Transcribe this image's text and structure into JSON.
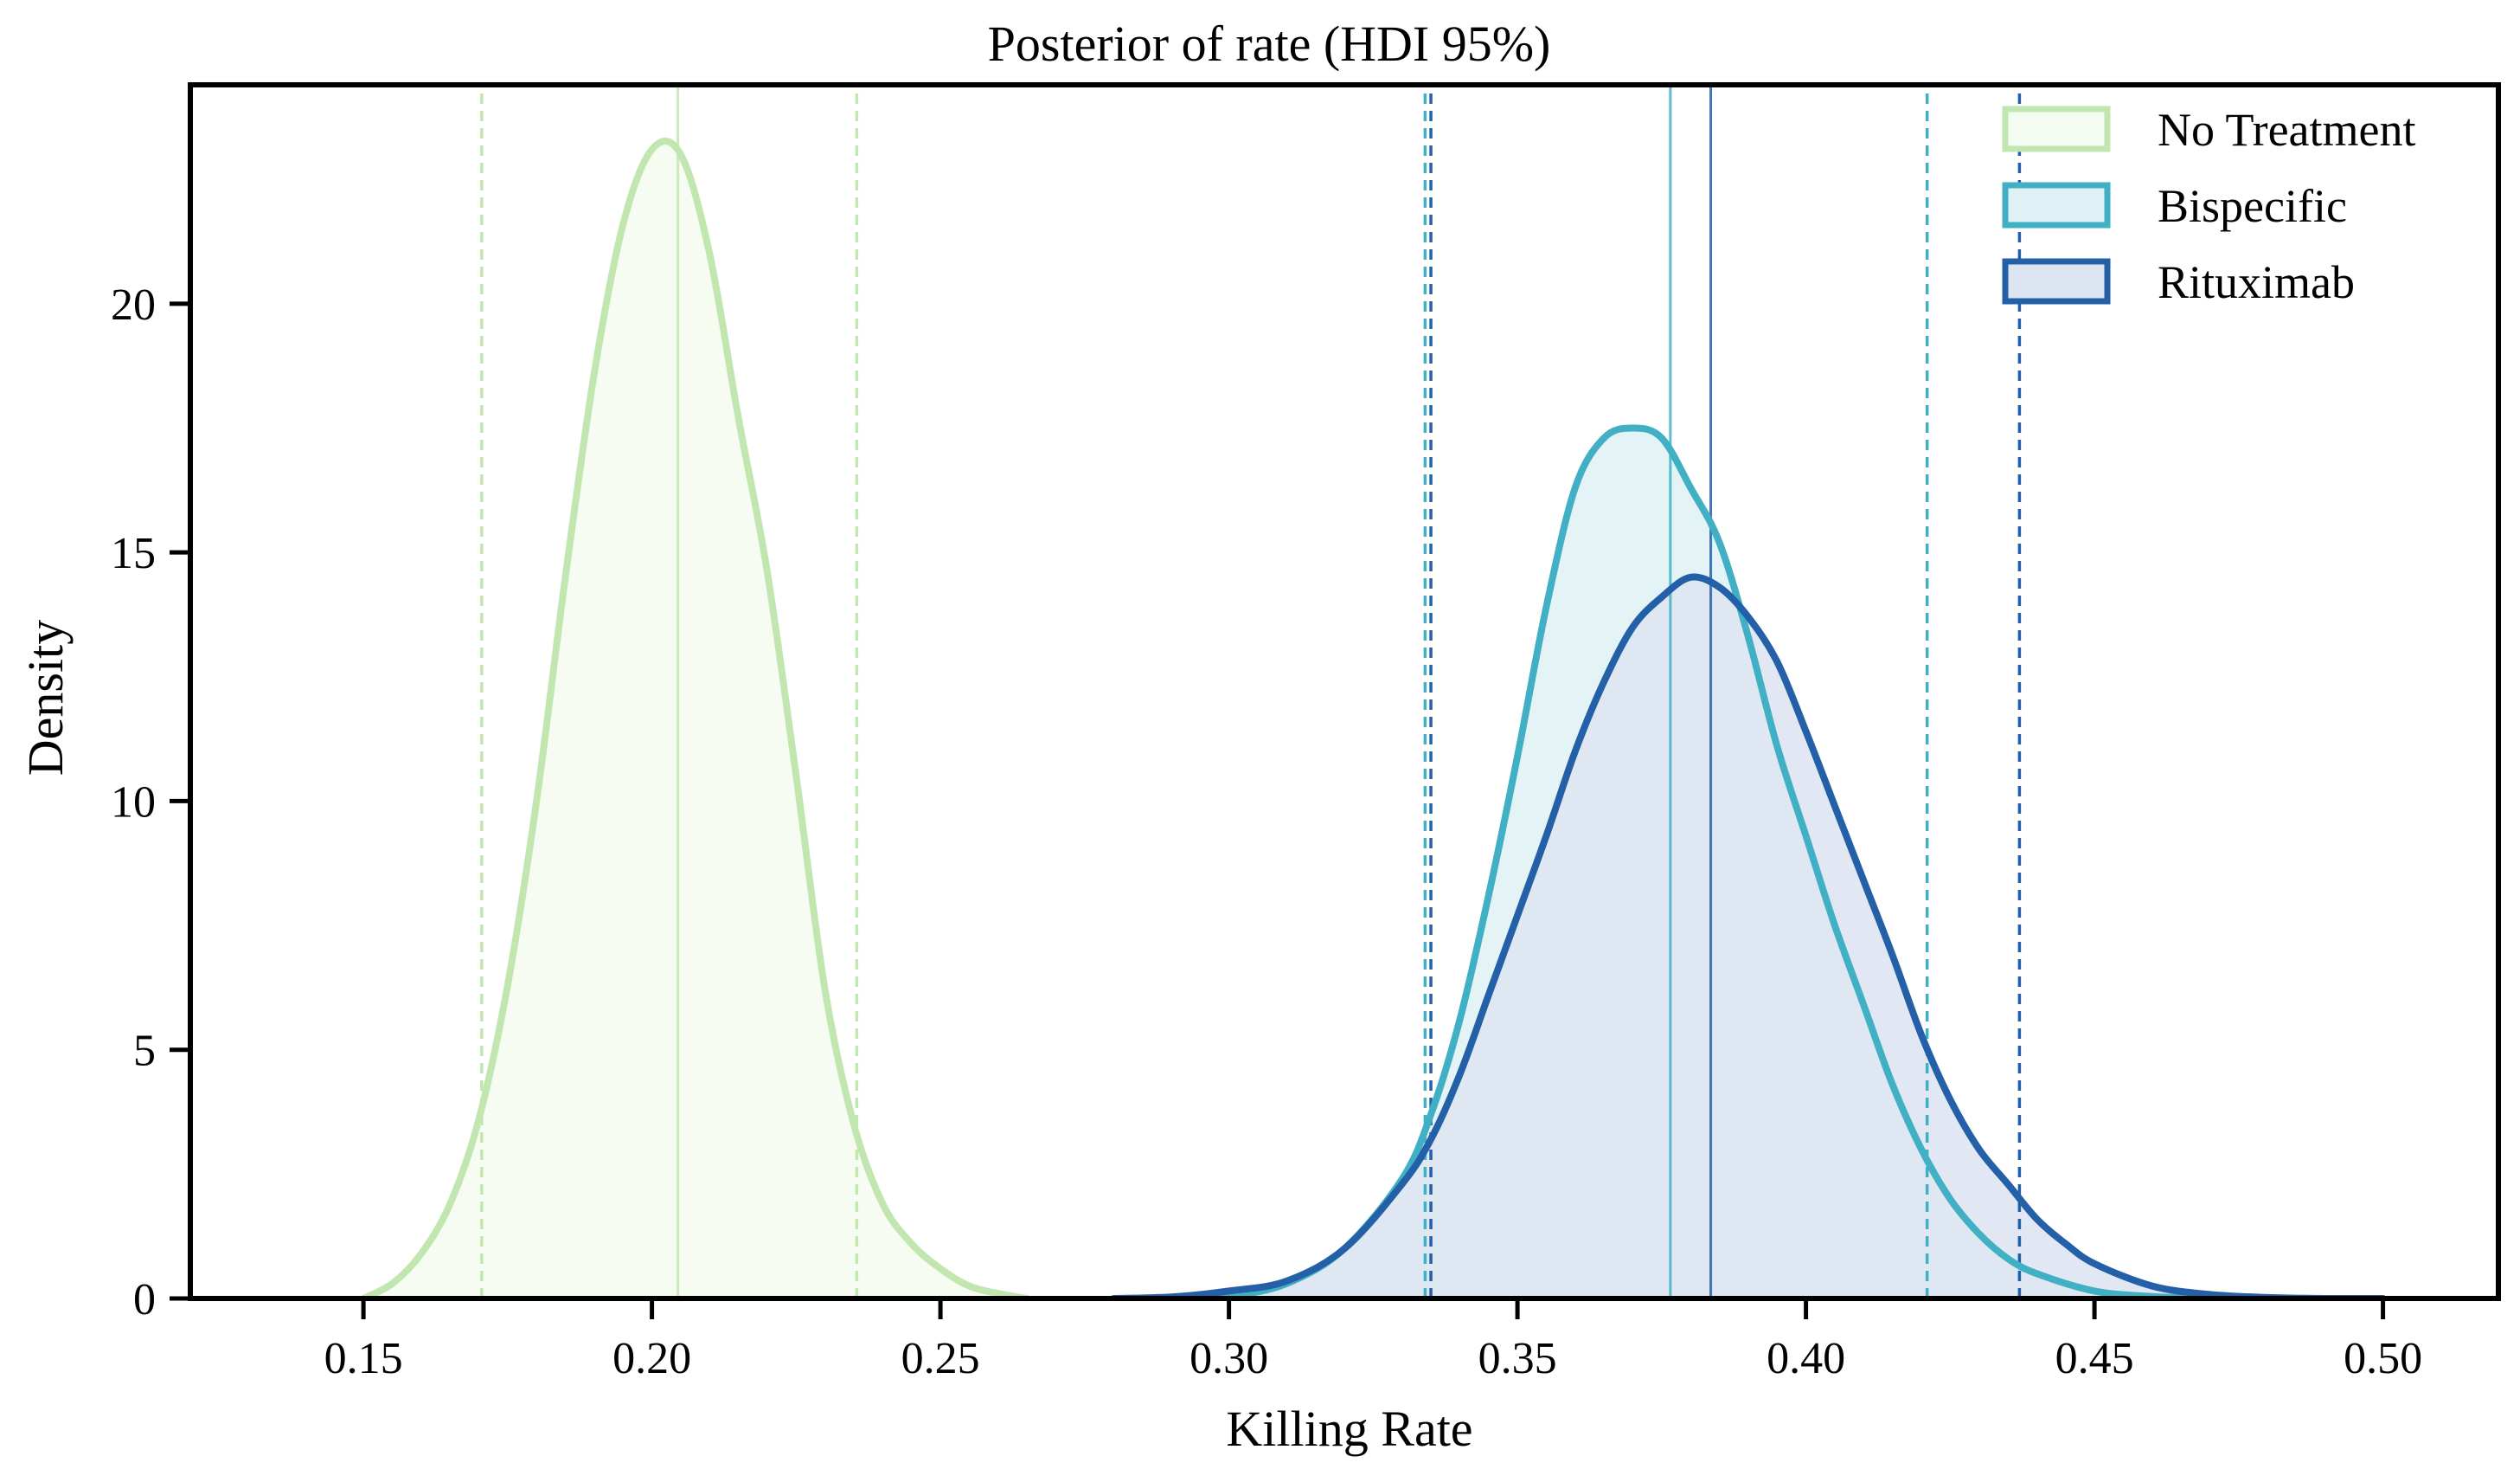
{
  "chart_data": {
    "type": "area",
    "title": "Posterior of rate (HDI 95%)",
    "xlabel": "Killing Rate",
    "ylabel": "Density",
    "xlim": [
      0.12,
      0.52
    ],
    "ylim": [
      0,
      24.4
    ],
    "xticks": [
      0.15,
      0.2,
      0.25,
      0.3,
      0.35,
      0.4,
      0.45,
      0.5
    ],
    "xtick_labels": [
      "0.15",
      "0.20",
      "0.25",
      "0.30",
      "0.35",
      "0.40",
      "0.45",
      "0.50"
    ],
    "yticks": [
      0,
      5,
      10,
      15,
      20
    ],
    "ytick_labels": [
      "0",
      "5",
      "10",
      "15",
      "20"
    ],
    "grid": false,
    "legend_position": "top-right",
    "series": [
      {
        "name": "No Treatment",
        "color": "#c2e6b0",
        "fill": "#f4fbf0",
        "mean": 0.2045,
        "hdi": [
          0.1705,
          0.2355
        ],
        "x": [
          0.15,
          0.155,
          0.16,
          0.165,
          0.17,
          0.175,
          0.18,
          0.185,
          0.19,
          0.195,
          0.2,
          0.205,
          0.21,
          0.215,
          0.22,
          0.225,
          0.23,
          0.235,
          0.24,
          0.245,
          0.25,
          0.255,
          0.26,
          0.265
        ],
        "y": [
          0.0,
          0.3,
          0.9,
          1.9,
          3.6,
          6.3,
          10.0,
          14.5,
          18.6,
          21.6,
          23.1,
          23.0,
          21.0,
          17.7,
          14.6,
          10.5,
          6.2,
          3.5,
          1.9,
          1.1,
          0.6,
          0.25,
          0.1,
          0.0
        ]
      },
      {
        "name": "Bispecific",
        "color": "#41b0c5",
        "fill": "#dff1f4",
        "mean": 0.3765,
        "hdi": [
          0.334,
          0.421
        ],
        "x": [
          0.29,
          0.3,
          0.31,
          0.32,
          0.33,
          0.335,
          0.34,
          0.345,
          0.35,
          0.355,
          0.36,
          0.365,
          0.37,
          0.375,
          0.38,
          0.385,
          0.39,
          0.395,
          0.4,
          0.405,
          0.41,
          0.415,
          0.42,
          0.425,
          0.43,
          0.435,
          0.44,
          0.45,
          0.46,
          0.47
        ],
        "y": [
          0.0,
          0.05,
          0.3,
          1.0,
          2.4,
          3.7,
          5.6,
          8.1,
          10.9,
          13.9,
          16.3,
          17.3,
          17.5,
          17.3,
          16.3,
          15.2,
          13.3,
          11.1,
          9.3,
          7.5,
          5.9,
          4.3,
          3.0,
          2.0,
          1.3,
          0.8,
          0.5,
          0.15,
          0.04,
          0.0
        ]
      },
      {
        "name": "Rituximab",
        "color": "#2360a8",
        "fill": "#dde4f1",
        "mean": 0.3835,
        "hdi": [
          0.335,
          0.437
        ],
        "x": [
          0.28,
          0.29,
          0.3,
          0.31,
          0.32,
          0.33,
          0.335,
          0.34,
          0.345,
          0.35,
          0.355,
          0.36,
          0.365,
          0.37,
          0.375,
          0.38,
          0.385,
          0.39,
          0.395,
          0.4,
          0.405,
          0.41,
          0.415,
          0.42,
          0.425,
          0.43,
          0.435,
          0.44,
          0.445,
          0.45,
          0.46,
          0.47,
          0.48,
          0.49,
          0.5
        ],
        "y": [
          0.0,
          0.03,
          0.15,
          0.35,
          1.0,
          2.3,
          3.2,
          4.5,
          6.1,
          7.7,
          9.3,
          11.0,
          12.4,
          13.5,
          14.1,
          14.5,
          14.3,
          13.7,
          12.8,
          11.4,
          9.9,
          8.4,
          6.9,
          5.3,
          4.0,
          3.0,
          2.3,
          1.6,
          1.1,
          0.7,
          0.25,
          0.08,
          0.02,
          0.0,
          0.0
        ]
      }
    ]
  }
}
